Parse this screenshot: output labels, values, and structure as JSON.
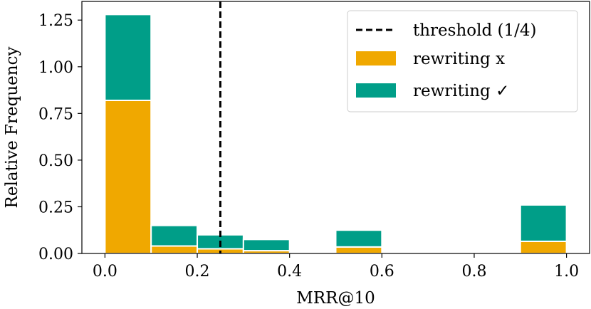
{
  "chart_data": {
    "type": "bar",
    "stacked": true,
    "bin_edges": [
      0.0,
      0.1,
      0.2,
      0.3,
      0.4,
      0.5,
      0.6,
      0.7,
      0.8,
      0.9,
      1.0
    ],
    "series": [
      {
        "name": "rewriting x",
        "color": "#f0a800",
        "values": [
          0.82,
          0.04,
          0.025,
          0.015,
          0.0,
          0.035,
          0.0,
          0.0,
          0.0,
          0.065
        ]
      },
      {
        "name": "rewriting ✓",
        "color": "#009e88",
        "values": [
          0.46,
          0.11,
          0.075,
          0.06,
          0.0,
          0.09,
          0.0,
          0.0,
          0.0,
          0.195
        ]
      }
    ],
    "threshold": {
      "name": "threshold (1/4)",
      "x": 0.25,
      "style": "dashed",
      "color": "#000000"
    },
    "xlabel": "MRR@10",
    "ylabel": "Relative Frequency",
    "xlim": [
      -0.05,
      1.05
    ],
    "ylim": [
      0.0,
      1.35
    ],
    "xticks": [
      0.0,
      0.2,
      0.4,
      0.6,
      0.8,
      1.0
    ],
    "xtick_labels": [
      "0.0",
      "0.2",
      "0.4",
      "0.6",
      "0.8",
      "1.0"
    ],
    "yticks": [
      0.0,
      0.25,
      0.5,
      0.75,
      1.0,
      1.25
    ],
    "ytick_labels": [
      "0.00",
      "0.25",
      "0.50",
      "0.75",
      "1.00",
      "1.25"
    ],
    "legend": {
      "position": "top-right",
      "entries": [
        "threshold (1/4)",
        "rewriting x",
        "rewriting ✓"
      ]
    },
    "grid": false
  }
}
